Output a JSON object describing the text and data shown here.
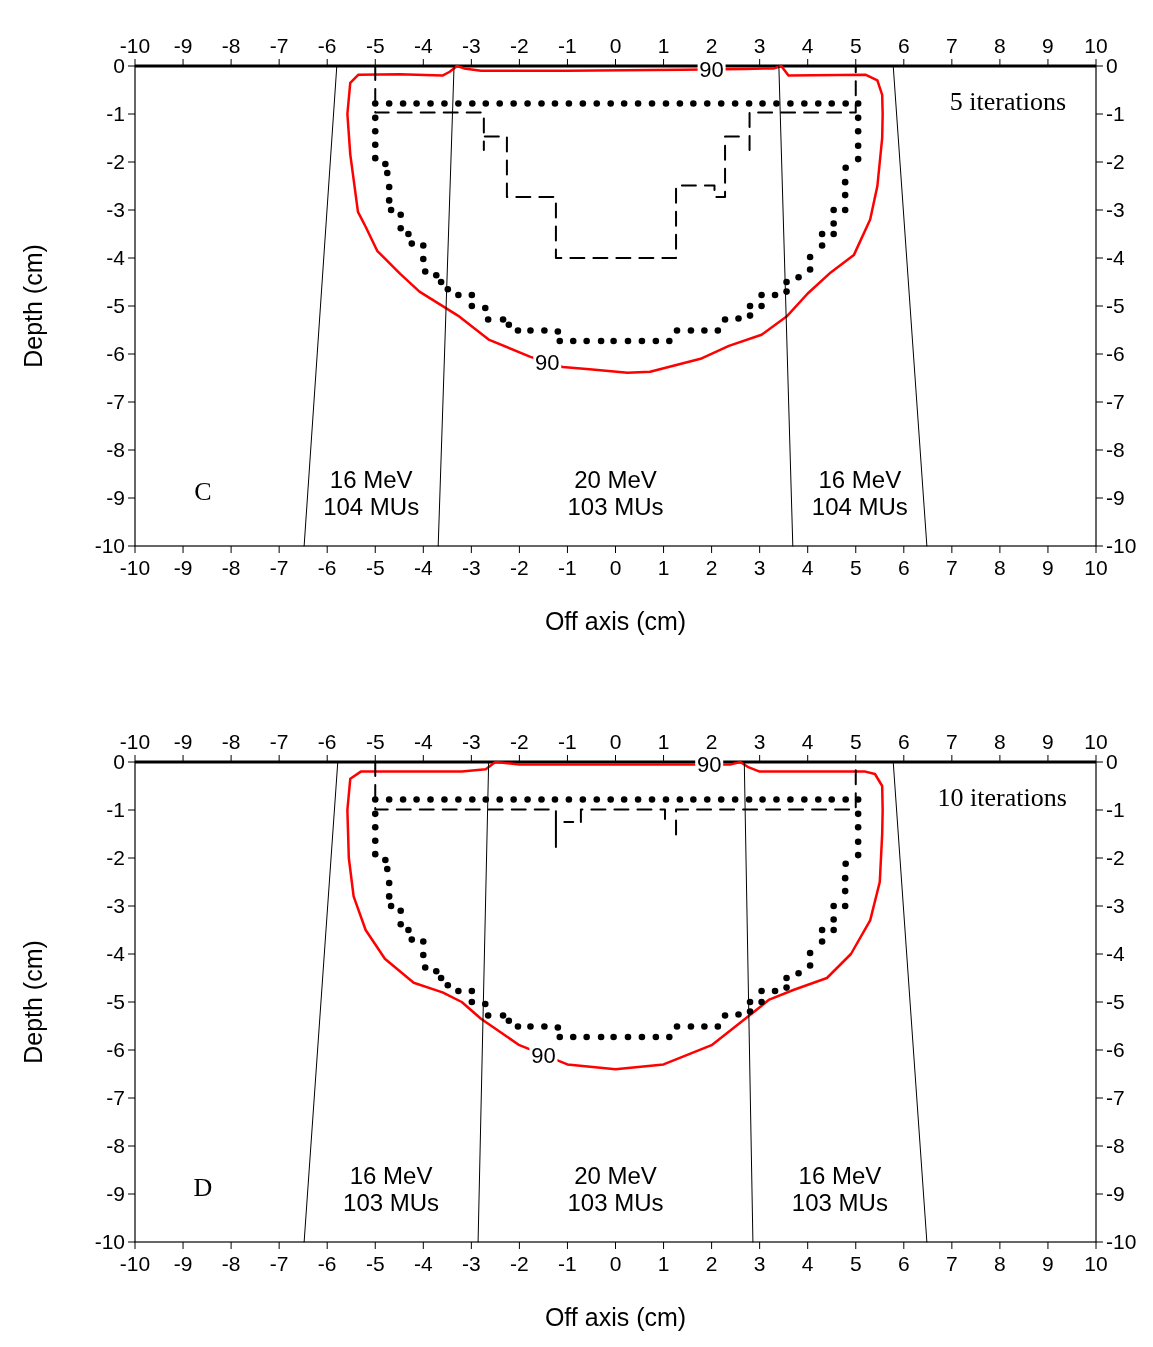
{
  "chart_data": [
    {
      "type": "line",
      "xlabel": "Off axis (cm)",
      "ylabel": "Depth (cm)",
      "xlim": [
        -10,
        10
      ],
      "ylim": [
        -10,
        0
      ],
      "xticks": [
        -10,
        -9,
        -8,
        -7,
        -6,
        -5,
        -4,
        -3,
        -2,
        -1,
        0,
        1,
        2,
        3,
        4,
        5,
        6,
        7,
        8,
        9,
        10
      ],
      "yticks": [
        0,
        -1,
        -2,
        -3,
        -4,
        -5,
        -6,
        -7,
        -8,
        -9,
        -10
      ],
      "x2lim": [
        -10,
        10
      ],
      "x2ticks": [
        -10,
        -9,
        -8,
        -7,
        -6,
        -5,
        -4,
        -3,
        -2,
        -1,
        0,
        1,
        2,
        3,
        4,
        5,
        6,
        7,
        8,
        9,
        10
      ],
      "y2lim": [
        -10,
        0
      ],
      "y2ticks": [
        0,
        -1,
        -2,
        -3,
        -4,
        -5,
        -6,
        -7,
        -8,
        -9,
        -10
      ],
      "series": [
        {
          "color": "#ff0000",
          "line_style": "solid",
          "x": [
            -5.58,
            -5.52,
            -5.35,
            -4.5,
            -3.6,
            -3.45,
            -3.3,
            -3.15,
            -2.8,
            -1,
            1.4,
            2.7,
            3.3,
            3.45,
            3.6,
            5.2,
            5.45,
            5.55,
            5.56,
            null,
            -5.58,
            -5.52,
            -5.36,
            -5.2,
            -4.96,
            -4.48,
            -4.08,
            -3.28,
            -2.64,
            -1.77,
            -1.1,
            -0.54,
            0.25,
            0.72,
            1.77,
            2.36,
            3.04,
            3.56,
            4.0,
            4.48,
            4.96,
            5.3,
            5.45,
            5.55,
            5.56
          ],
          "values": [
            -1.0,
            -0.35,
            -0.18,
            -0.17,
            -0.2,
            -0.12,
            0,
            -0.05,
            -0.1,
            -0.1,
            -0.08,
            -0.06,
            -0.05,
            0,
            -0.2,
            -0.18,
            -0.3,
            -0.6,
            -1.0,
            null,
            -1.0,
            -1.84,
            -3.04,
            -3.35,
            -3.85,
            -4.33,
            -4.7,
            -5.2,
            -5.7,
            -6.06,
            -6.27,
            -6.32,
            -6.39,
            -6.37,
            -6.1,
            -5.83,
            -5.6,
            -5.22,
            -4.74,
            -4.3,
            -3.94,
            -3.2,
            -2.5,
            -1.5,
            -1.0
          ]
        },
        {
          "type": "scatter",
          "color": "#000000",
          "marker": "circle",
          "x": [
            -5.0,
            -4.71,
            -4.42,
            -4.14,
            -3.85,
            -3.56,
            -3.27,
            -2.98,
            -2.7,
            -2.41,
            -2.12,
            -1.83,
            -1.54,
            -1.26,
            -0.97,
            -0.68,
            -0.39,
            -0.1,
            0.18,
            0.47,
            0.76,
            1.05,
            1.34,
            1.62,
            1.91,
            2.2,
            2.49,
            2.78,
            3.06,
            3.35,
            3.64,
            3.93,
            4.22,
            4.5,
            4.79,
            5.05,
            5.05,
            5.05,
            5.05,
            5.05,
            4.79,
            4.78,
            4.78,
            4.78,
            4.54,
            4.54,
            4.54,
            4.3,
            4.3,
            4.05,
            4.05,
            3.81,
            3.56,
            3.56,
            3.32,
            3.04,
            3.04,
            2.8,
            2.8,
            2.56,
            2.28,
            2.13,
            1.85,
            1.57,
            1.28,
            1.12,
            0.84,
            0.55,
            0.26,
            -0.04,
            -0.3,
            -0.6,
            -0.88,
            -1.16,
            -1.2,
            -1.48,
            -1.77,
            -2.03,
            -2.22,
            -2.34,
            -2.65,
            -2.71,
            -2.99,
            -2.99,
            -3.27,
            -3.49,
            -3.63,
            -3.73,
            -3.96,
            -4.0,
            -4.0,
            -4.24,
            -4.31,
            -4.47,
            -4.47,
            -4.67,
            -4.71,
            -4.71,
            -4.75,
            -4.79,
            -5.0,
            -5.0,
            -5.0,
            -5.0
          ],
          "values": [
            -0.78,
            -0.78,
            -0.78,
            -0.78,
            -0.78,
            -0.78,
            -0.78,
            -0.78,
            -0.78,
            -0.78,
            -0.78,
            -0.78,
            -0.78,
            -0.78,
            -0.78,
            -0.78,
            -0.78,
            -0.78,
            -0.78,
            -0.78,
            -0.78,
            -0.78,
            -0.78,
            -0.78,
            -0.78,
            -0.78,
            -0.78,
            -0.78,
            -0.78,
            -0.78,
            -0.78,
            -0.78,
            -0.78,
            -0.78,
            -0.78,
            -0.78,
            -1.08,
            -1.36,
            -1.66,
            -1.94,
            -2.12,
            -2.42,
            -2.69,
            -3.0,
            -3.0,
            -3.28,
            -3.5,
            -3.5,
            -3.74,
            -3.98,
            -4.24,
            -4.4,
            -4.5,
            -4.7,
            -4.77,
            -4.77,
            -5.0,
            -5.0,
            -5.2,
            -5.26,
            -5.28,
            -5.51,
            -5.51,
            -5.51,
            -5.51,
            -5.73,
            -5.73,
            -5.73,
            -5.73,
            -5.73,
            -5.73,
            -5.73,
            -5.73,
            -5.73,
            -5.53,
            -5.51,
            -5.51,
            -5.51,
            -5.39,
            -5.28,
            -5.28,
            -5.04,
            -5.0,
            -4.77,
            -4.77,
            -4.65,
            -4.5,
            -4.36,
            -4.28,
            -4.02,
            -3.74,
            -3.7,
            -3.5,
            -3.38,
            -3.1,
            -3.0,
            -2.8,
            -2.52,
            -2.23,
            -2.04,
            -1.92,
            -1.64,
            -1.36,
            -1.08
          ]
        },
        {
          "color": "#000000",
          "line_style": "dashed",
          "x": [
            -5,
            -5,
            -2.74,
            -2.74,
            -2.74,
            -2.26,
            -2.26,
            -1.24,
            -1.24,
            1.26,
            1.26,
            2.06,
            2.06,
            2.28,
            2.28,
            2.65
          ],
          "values": [
            0,
            -0.97,
            -0.97,
            -1.75,
            -1.47,
            -1.47,
            -2.73,
            -2.73,
            -4.0,
            -4.0,
            -2.49,
            -2.49,
            -2.73,
            -2.73,
            -1.47,
            -1.47
          ]
        },
        {
          "color": "#000000",
          "line_style": "dashed",
          "x": [
            2.79,
            2.79,
            5,
            5
          ],
          "values": [
            -1.75,
            -0.97,
            -0.97,
            0
          ]
        },
        {
          "color": "#000000",
          "line_style": "solid",
          "x": [
            -5.8,
            -6.48
          ],
          "values": [
            0,
            -10
          ]
        },
        {
          "color": "#000000",
          "line_style": "solid",
          "x": [
            -3.36,
            -3.69
          ],
          "values": [
            0,
            -10
          ]
        },
        {
          "color": "#000000",
          "line_style": "solid",
          "x": [
            3.4,
            3.69
          ],
          "values": [
            0,
            -10
          ]
        },
        {
          "color": "#000000",
          "line_style": "solid",
          "x": [
            5.78,
            6.48
          ],
          "values": [
            0,
            -10
          ]
        }
      ],
      "annotations": [
        {
          "text": "90",
          "x": 2.0,
          "y": -0.07
        },
        {
          "text": "90",
          "x": -1.42,
          "y": -6.18
        },
        "5 iterations",
        "C",
        "16 MeV\n104 MUs",
        "20 MeV\n103 MUs",
        "16 MeV\n104 MUs"
      ]
    },
    {
      "type": "line",
      "xlabel": "Off axis (cm)",
      "ylabel": "Depth (cm)",
      "xlim": [
        -10,
        10
      ],
      "ylim": [
        -10,
        0
      ],
      "xticks": [
        -10,
        -9,
        -8,
        -7,
        -6,
        -5,
        -4,
        -3,
        -2,
        -1,
        0,
        1,
        2,
        3,
        4,
        5,
        6,
        7,
        8,
        9,
        10
      ],
      "yticks": [
        0,
        -1,
        -2,
        -3,
        -4,
        -5,
        -6,
        -7,
        -8,
        -9,
        -10
      ],
      "x2lim": [
        -10,
        10
      ],
      "x2ticks": [
        -10,
        -9,
        -8,
        -7,
        -6,
        -5,
        -4,
        -3,
        -2,
        -1,
        0,
        1,
        2,
        3,
        4,
        5,
        6,
        7,
        8,
        9,
        10
      ],
      "y2lim": [
        -10,
        0
      ],
      "y2ticks": [
        0,
        -1,
        -2,
        -3,
        -4,
        -5,
        -6,
        -7,
        -8,
        -9,
        -10
      ],
      "series": [
        {
          "color": "#ff0000",
          "line_style": "solid",
          "x": [
            -5.58,
            -5.52,
            -5.3,
            -3.2,
            -2.7,
            -2.5,
            -2.0,
            1.5,
            2.4,
            2.6,
            2.75,
            3.0,
            5.2,
            5.4,
            5.55,
            5.56,
            null,
            -5.58,
            -5.55,
            -5.45,
            -5.2,
            -4.8,
            -4.2,
            -3.6,
            -3.2,
            -2.8,
            -2.0,
            -1.0,
            0,
            1.0,
            2.0,
            2.7,
            3.2,
            3.7,
            4.4,
            4.9,
            5.3,
            5.5,
            5.55,
            5.56
          ],
          "values": [
            -1.0,
            -0.35,
            -0.2,
            -0.2,
            -0.15,
            0,
            -0.05,
            -0.05,
            -0.05,
            0,
            -0.1,
            -0.2,
            -0.2,
            -0.25,
            -0.5,
            -1.0,
            null,
            -1.0,
            -2.0,
            -2.8,
            -3.5,
            -4.1,
            -4.6,
            -4.8,
            -5.0,
            -5.35,
            -5.9,
            -6.3,
            -6.4,
            -6.3,
            -5.9,
            -5.35,
            -4.95,
            -4.75,
            -4.5,
            -4.0,
            -3.3,
            -2.5,
            -1.5,
            -1.0
          ]
        },
        {
          "type": "scatter",
          "color": "#000000",
          "marker": "circle",
          "x": [
            -5.0,
            -4.71,
            -4.42,
            -4.14,
            -3.85,
            -3.56,
            -3.27,
            -2.98,
            -2.7,
            -2.41,
            -2.12,
            -1.83,
            -1.54,
            -1.26,
            -0.97,
            -0.68,
            -0.39,
            -0.1,
            0.18,
            0.47,
            0.76,
            1.05,
            1.34,
            1.62,
            1.91,
            2.2,
            2.49,
            2.78,
            3.06,
            3.35,
            3.64,
            3.93,
            4.22,
            4.5,
            4.79,
            5.05,
            5.05,
            5.05,
            5.05,
            5.05,
            4.79,
            4.78,
            4.78,
            4.78,
            4.54,
            4.54,
            4.54,
            4.3,
            4.3,
            4.05,
            4.05,
            3.81,
            3.56,
            3.56,
            3.32,
            3.04,
            3.04,
            2.8,
            2.8,
            2.56,
            2.28,
            2.13,
            1.85,
            1.57,
            1.28,
            1.12,
            0.84,
            0.55,
            0.26,
            -0.04,
            -0.3,
            -0.6,
            -0.88,
            -1.16,
            -1.2,
            -1.48,
            -1.77,
            -2.03,
            -2.22,
            -2.34,
            -2.65,
            -2.71,
            -2.99,
            -2.99,
            -3.27,
            -3.49,
            -3.63,
            -3.73,
            -3.96,
            -4.0,
            -4.0,
            -4.24,
            -4.31,
            -4.47,
            -4.47,
            -4.67,
            -4.71,
            -4.71,
            -4.75,
            -4.79,
            -5.0,
            -5.0,
            -5.0,
            -5.0
          ],
          "values": [
            -0.78,
            -0.78,
            -0.78,
            -0.78,
            -0.78,
            -0.78,
            -0.78,
            -0.78,
            -0.78,
            -0.78,
            -0.78,
            -0.78,
            -0.78,
            -0.78,
            -0.78,
            -0.78,
            -0.78,
            -0.78,
            -0.78,
            -0.78,
            -0.78,
            -0.78,
            -0.78,
            -0.78,
            -0.78,
            -0.78,
            -0.78,
            -0.78,
            -0.78,
            -0.78,
            -0.78,
            -0.78,
            -0.78,
            -0.78,
            -0.78,
            -0.78,
            -1.08,
            -1.36,
            -1.66,
            -1.94,
            -2.12,
            -2.42,
            -2.69,
            -3.0,
            -3.0,
            -3.28,
            -3.5,
            -3.5,
            -3.74,
            -3.98,
            -4.24,
            -4.4,
            -4.5,
            -4.7,
            -4.77,
            -4.77,
            -5.0,
            -5.0,
            -5.2,
            -5.26,
            -5.28,
            -5.51,
            -5.51,
            -5.51,
            -5.51,
            -5.73,
            -5.73,
            -5.73,
            -5.73,
            -5.73,
            -5.73,
            -5.73,
            -5.73,
            -5.73,
            -5.53,
            -5.51,
            -5.51,
            -5.51,
            -5.39,
            -5.28,
            -5.28,
            -5.04,
            -5.0,
            -4.77,
            -4.77,
            -4.65,
            -4.5,
            -4.36,
            -4.28,
            -4.02,
            -3.74,
            -3.7,
            -3.5,
            -3.38,
            -3.1,
            -3.0,
            -2.8,
            -2.52,
            -2.23,
            -2.04,
            -1.92,
            -1.64,
            -1.36,
            -1.08
          ]
        },
        {
          "color": "#000000",
          "line_style": "dashed",
          "x": [
            -5,
            -5,
            -1.24,
            -1.24,
            -1.24,
            -0.88
          ],
          "values": [
            0,
            -0.99,
            -0.99,
            -1.77,
            -1.25,
            -1.25
          ]
        },
        {
          "color": "#000000",
          "line_style": "dashed",
          "x": [
            -0.72,
            -0.72,
            1.03,
            1.03,
            1.1
          ],
          "values": [
            -1.25,
            -0.99,
            -0.99,
            -1.25,
            -1.25
          ]
        },
        {
          "color": "#000000",
          "line_style": "dashed",
          "x": [
            1.26,
            1.26,
            5,
            5
          ],
          "values": [
            -1.51,
            -0.99,
            -0.99,
            0
          ]
        },
        {
          "color": "#000000",
          "line_style": "solid",
          "x": [
            -5.78,
            -6.48
          ],
          "values": [
            0,
            -10
          ]
        },
        {
          "color": "#000000",
          "line_style": "solid",
          "x": [
            -2.64,
            -2.86
          ],
          "values": [
            0,
            -10
          ]
        },
        {
          "color": "#000000",
          "line_style": "solid",
          "x": [
            2.68,
            2.86
          ],
          "values": [
            0,
            -10
          ]
        },
        {
          "color": "#000000",
          "line_style": "solid",
          "x": [
            5.78,
            6.48
          ],
          "values": [
            0,
            -10
          ]
        }
      ],
      "annotations": [
        {
          "text": "90",
          "x": 1.95,
          "y": -0.05
        },
        {
          "text": "90",
          "x": -1.5,
          "y": -6.1
        },
        "10 iterations",
        "D",
        "16 MeV\n103 MUs",
        "20 MeV\n103 MUs",
        "16 MeV\n103 MUs"
      ]
    }
  ]
}
